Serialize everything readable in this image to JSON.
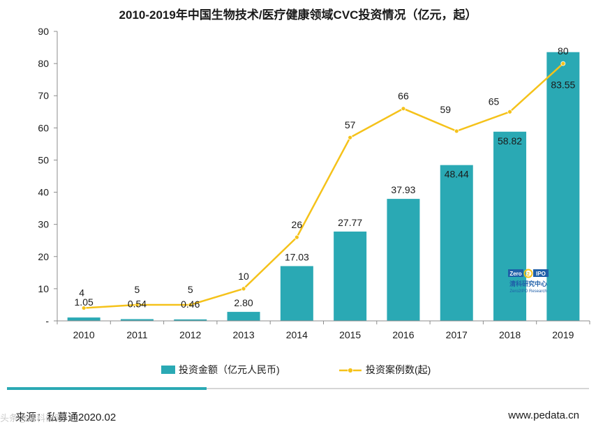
{
  "chart_data": {
    "type": "bar",
    "title": "2010-2019年中国生物技术/医疗健康领域CVC投资情况（亿元，起）",
    "categories": [
      "2010",
      "2011",
      "2012",
      "2013",
      "2014",
      "2015",
      "2016",
      "2017",
      "2018",
      "2019"
    ],
    "ylim": [
      0,
      90
    ],
    "yticks": [
      0,
      10,
      20,
      30,
      40,
      50,
      60,
      70,
      80,
      90
    ],
    "ytick_labels": [
      "-",
      "10",
      "20",
      "30",
      "40",
      "50",
      "60",
      "70",
      "80",
      "90"
    ],
    "series": [
      {
        "name": "投资金额（亿元人民币)",
        "type": "bar",
        "color": "#2aa9b4",
        "values": [
          1.05,
          0.54,
          0.46,
          2.8,
          17.03,
          27.77,
          37.93,
          48.44,
          58.82,
          83.55
        ],
        "labels": [
          "1.05",
          "0.54",
          "0.46",
          "2.80",
          "17.03",
          "27.77",
          "37.93",
          "48.44",
          "58.82",
          "83.55"
        ]
      },
      {
        "name": "投资案例数(起)",
        "type": "line",
        "color": "#f5c21a",
        "values": [
          4,
          5,
          5,
          10,
          26,
          57,
          66,
          59,
          65,
          80
        ],
        "labels": [
          "4",
          "5",
          "5",
          "10",
          "26",
          "57",
          "66",
          "59",
          "65",
          "80"
        ]
      }
    ],
    "legend_position": "bottom"
  },
  "footer": {
    "source": "来源：私募通2020.02",
    "site": "www.pedata.cn",
    "watermark": "头条@清科研究"
  },
  "logo": {
    "brand": "Zero2IPO",
    "name_cn": "清科研究中心",
    "name_en": "Zero2IPO Research"
  }
}
